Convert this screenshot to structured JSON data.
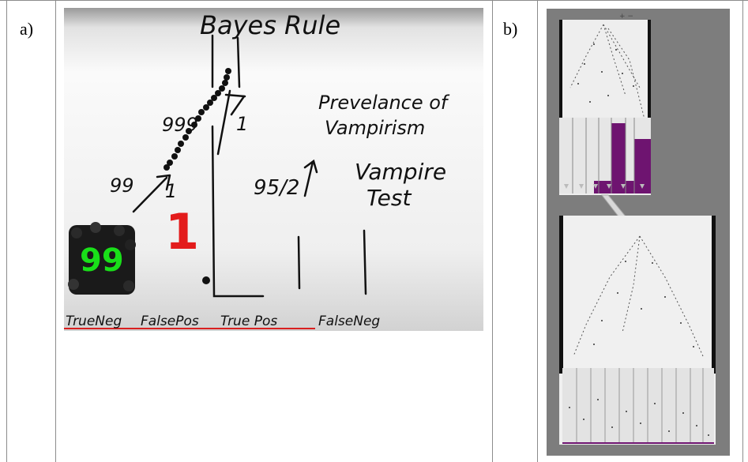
{
  "labels": {
    "a": "a)",
    "b": "b)"
  },
  "panel_a": {
    "title": "Bayes Rule",
    "prevalence_line1": "Prevelance of",
    "prevalence_line2": "Vampirism",
    "test_line1": "Vampire",
    "test_line2": "Test",
    "branch_999": "999",
    "branch_1_top": "1",
    "branch_99": "99",
    "branch_1_mid": "1",
    "branch_95_2": "95/2",
    "count_true_neg": "99",
    "count_false_pos": "1",
    "bins": [
      "TrueNeg",
      "FalsePos",
      "True Pos",
      "FalseNeg"
    ]
  },
  "panel_b": {
    "zoom_controls": "+ −"
  },
  "colors": {
    "purple": "#6e1470",
    "red": "#e31b1b",
    "green": "#19e019"
  }
}
